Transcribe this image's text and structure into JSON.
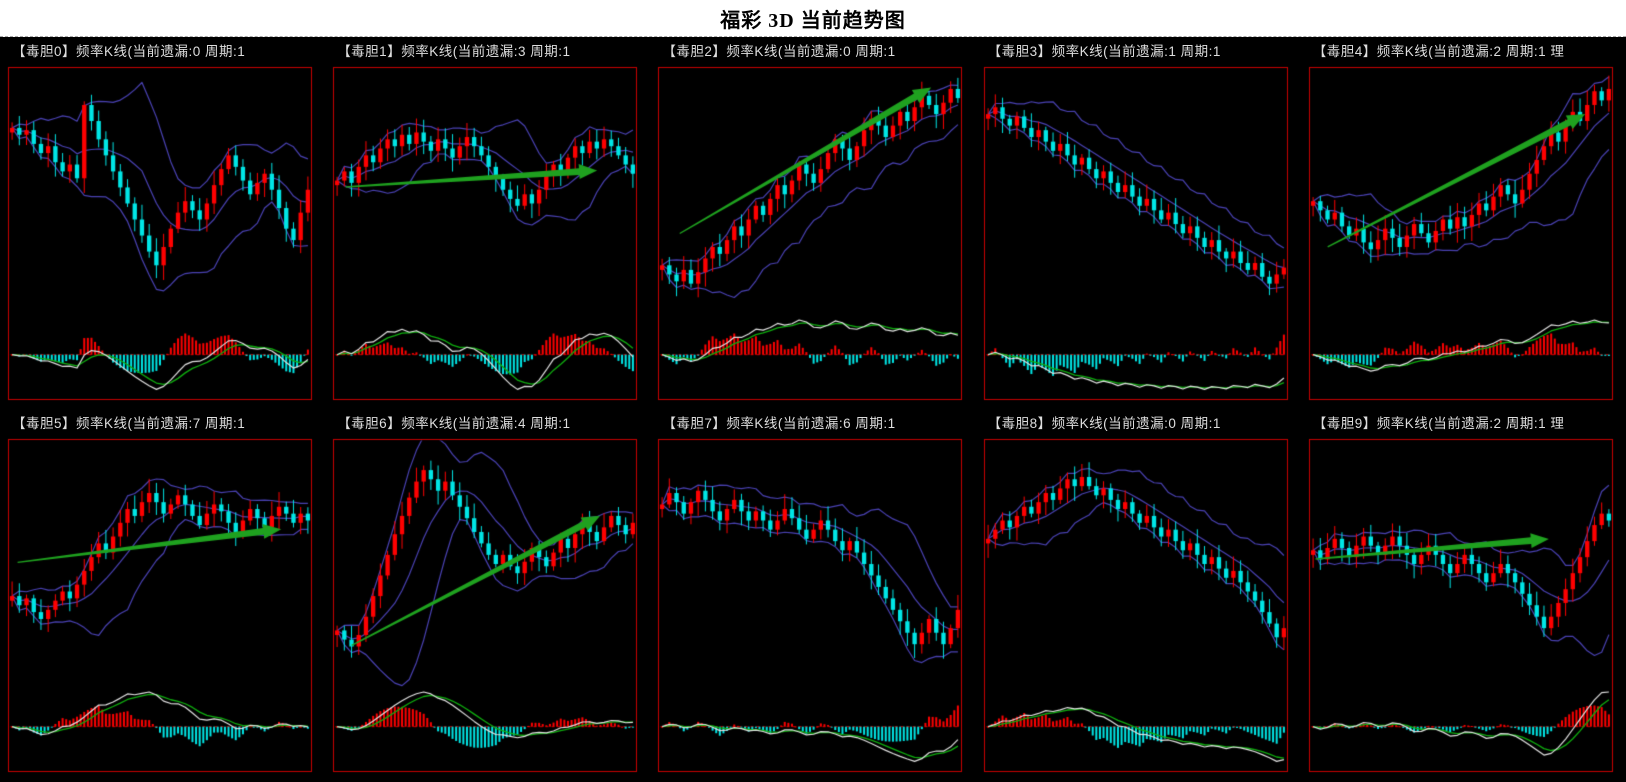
{
  "page": {
    "title": "福彩 3D 当前趋势图",
    "layout": {
      "columns": 5,
      "rows": 2,
      "panel_count": 10
    }
  },
  "colors": {
    "page_bg": "#ffffff",
    "title_text": "#000000",
    "separator": "#a8a8a8",
    "panel_bg": "#000000",
    "frame": "#c80000",
    "header_text": "#dedede",
    "candle_up": "#ff0000",
    "candle_down": "#00e6e6",
    "bollinger": "#4a42b4",
    "macd_dif_line": "#e2e2e2",
    "macd_dea_line": "#0fae0f",
    "macd_hist_pos": "#ff0000",
    "macd_hist_neg": "#00e6e6",
    "zero_line": "#cc0000",
    "arrow": "#1fa11f"
  },
  "chart_data": [
    {
      "name": "毒胆0",
      "label": "【毒胆0】频率K线(当前遗漏:0 周期:1",
      "current_miss": 0,
      "cycle": 1,
      "type": "candlestick",
      "indicators": [
        "bollinger",
        "macd"
      ],
      "trend_arrow": null,
      "closes": [
        78,
        75,
        77,
        71,
        67,
        70,
        63,
        59,
        62,
        56,
        88,
        81,
        73,
        66,
        59,
        52,
        45,
        38,
        31,
        24,
        18,
        26,
        34,
        41,
        46,
        42,
        38,
        45,
        53,
        60,
        66,
        61,
        55,
        49,
        54,
        58,
        51,
        43,
        34,
        29,
        41,
        51
      ]
    },
    {
      "name": "毒胆1",
      "label": "【毒胆1】频率K线(当前遗漏:3 周期:1",
      "current_miss": 3,
      "cycle": 1,
      "type": "candlestick",
      "indicators": [
        "bollinger",
        "macd"
      ],
      "trend_arrow": {
        "from": [
          0.04,
          0.36
        ],
        "to": [
          0.87,
          0.31
        ]
      },
      "closes": [
        55,
        59,
        54,
        61,
        66,
        63,
        69,
        73,
        70,
        75,
        71,
        76,
        72,
        68,
        73,
        69,
        65,
        70,
        74,
        70,
        66,
        61,
        56,
        51,
        47,
        44,
        49,
        45,
        51,
        57,
        62,
        59,
        65,
        70,
        67,
        72,
        69,
        73,
        70,
        66,
        62,
        58
      ]
    },
    {
      "name": "毒胆2",
      "label": "【毒胆2】频率K线(当前遗漏:0 周期:1",
      "current_miss": 0,
      "cycle": 1,
      "type": "candlestick",
      "indicators": [
        "bollinger",
        "macd"
      ],
      "trend_arrow": {
        "from": [
          0.07,
          0.5
        ],
        "to": [
          0.9,
          0.06
        ]
      },
      "closes": [
        18,
        14,
        11,
        16,
        10,
        15,
        21,
        26,
        23,
        29,
        35,
        31,
        38,
        44,
        40,
        47,
        53,
        49,
        55,
        62,
        58,
        54,
        60,
        67,
        73,
        69,
        64,
        70,
        77,
        82,
        79,
        74,
        79,
        85,
        81,
        87,
        92,
        88,
        84,
        89,
        95,
        91
      ]
    },
    {
      "name": "毒胆3",
      "label": "【毒胆3】频率K线(当前遗漏:1 周期:1",
      "current_miss": 1,
      "cycle": 1,
      "type": "candlestick",
      "indicators": [
        "bollinger",
        "macd"
      ],
      "trend_arrow": null,
      "closes": [
        84,
        87,
        82,
        79,
        83,
        78,
        74,
        77,
        72,
        68,
        71,
        66,
        62,
        65,
        60,
        56,
        59,
        54,
        50,
        53,
        48,
        44,
        47,
        42,
        38,
        41,
        36,
        32,
        35,
        30,
        26,
        29,
        24,
        21,
        24,
        19,
        16,
        19,
        13,
        10,
        14,
        17
      ]
    },
    {
      "name": "毒胆4",
      "label": "【毒胆4】频率K线(当前遗漏:2 周期:1 理",
      "current_miss": 2,
      "cycle": 1,
      "type": "candlestick",
      "indicators": [
        "bollinger",
        "macd"
      ],
      "trend_arrow": {
        "from": [
          0.06,
          0.54
        ],
        "to": [
          0.91,
          0.14
        ]
      },
      "closes": [
        46,
        42,
        38,
        41,
        35,
        31,
        34,
        28,
        25,
        29,
        34,
        30,
        26,
        31,
        36,
        32,
        28,
        33,
        38,
        34,
        39,
        35,
        40,
        45,
        42,
        48,
        53,
        49,
        45,
        51,
        58,
        64,
        70,
        76,
        72,
        79,
        85,
        81,
        88,
        94,
        90,
        95
      ]
    },
    {
      "name": "毒胆5",
      "label": "【毒胆5】频率K线(当前遗漏:7 周期:1",
      "current_miss": 7,
      "cycle": 1,
      "type": "candlestick",
      "indicators": [
        "bollinger",
        "macd"
      ],
      "trend_arrow": {
        "from": [
          0.03,
          0.37
        ],
        "to": [
          0.9,
          0.27
        ]
      },
      "closes": [
        36,
        32,
        35,
        29,
        26,
        30,
        34,
        38,
        35,
        41,
        47,
        53,
        59,
        55,
        62,
        68,
        74,
        71,
        77,
        81,
        77,
        72,
        76,
        80,
        76,
        71,
        67,
        72,
        76,
        73,
        68,
        64,
        69,
        74,
        70,
        66,
        71,
        75,
        72,
        68,
        72,
        69
      ]
    },
    {
      "name": "毒胆6",
      "label": "【毒胆6】频率K线(当前遗漏:4 周期:1",
      "current_miss": 4,
      "cycle": 1,
      "type": "candlestick",
      "indicators": [
        "bollinger",
        "macd"
      ],
      "trend_arrow": {
        "from": [
          0.06,
          0.62
        ],
        "to": [
          0.88,
          0.23
        ]
      },
      "closes": [
        21,
        17,
        14,
        19,
        27,
        36,
        45,
        54,
        63,
        71,
        79,
        86,
        91,
        87,
        82,
        86,
        80,
        75,
        70,
        64,
        59,
        54,
        50,
        54,
        49,
        46,
        51,
        57,
        53,
        49,
        55,
        61,
        57,
        63,
        68,
        64,
        60,
        66,
        71,
        67,
        63,
        68
      ]
    },
    {
      "name": "毒胆7",
      "label": "【毒胆7】频率K线(当前遗漏:6 周期:1",
      "current_miss": 6,
      "cycle": 1,
      "type": "candlestick",
      "indicators": [
        "bollinger",
        "macd"
      ],
      "trend_arrow": null,
      "closes": [
        76,
        81,
        77,
        72,
        77,
        82,
        78,
        73,
        69,
        74,
        78,
        73,
        69,
        73,
        69,
        65,
        69,
        74,
        70,
        65,
        61,
        65,
        69,
        65,
        60,
        56,
        60,
        55,
        50,
        45,
        40,
        35,
        30,
        25,
        20,
        15,
        20,
        26,
        20,
        15,
        22,
        30
      ]
    },
    {
      "name": "毒胆8",
      "label": "【毒胆8】频率K线(当前遗漏:0 周期:1",
      "current_miss": 0,
      "cycle": 1,
      "type": "candlestick",
      "indicators": [
        "bollinger",
        "macd"
      ],
      "trend_arrow": null,
      "closes": [
        61,
        65,
        69,
        66,
        71,
        75,
        72,
        77,
        81,
        78,
        83,
        87,
        84,
        88,
        84,
        80,
        83,
        78,
        74,
        77,
        72,
        68,
        71,
        66,
        62,
        65,
        60,
        56,
        59,
        54,
        50,
        53,
        48,
        44,
        47,
        42,
        38,
        34,
        29,
        24,
        18,
        22
      ]
    },
    {
      "name": "毒胆9",
      "label": "【毒胆9】频率K线(当前遗漏:2 周期:1 理",
      "current_miss": 2,
      "cycle": 1,
      "type": "candlestick",
      "indicators": [
        "bollinger",
        "macd"
      ],
      "trend_arrow": {
        "from": [
          0.02,
          0.36
        ],
        "to": [
          0.79,
          0.3
        ]
      },
      "closes": [
        56,
        52,
        57,
        61,
        57,
        53,
        58,
        62,
        58,
        54,
        58,
        62,
        58,
        54,
        50,
        54,
        58,
        54,
        50,
        46,
        50,
        54,
        50,
        46,
        42,
        46,
        50,
        46,
        42,
        37,
        32,
        27,
        22,
        27,
        33,
        39,
        46,
        53,
        60,
        67,
        72,
        69
      ]
    }
  ]
}
